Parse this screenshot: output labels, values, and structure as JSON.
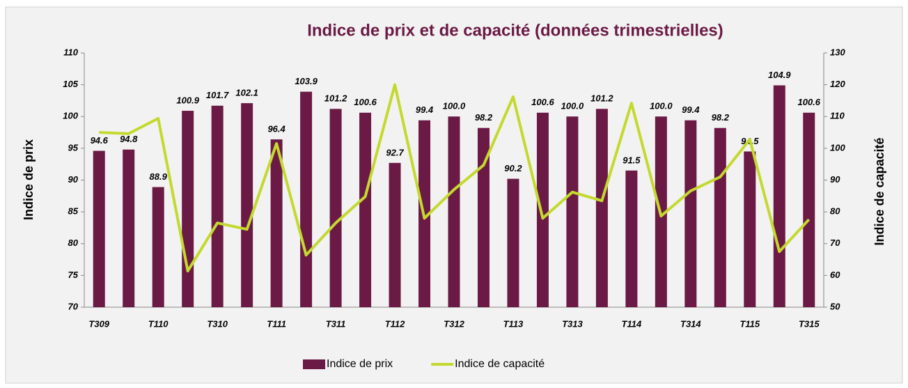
{
  "chart_data": {
    "type": "bar+line",
    "title": "Indice de prix et de capacité (données trimestrielles)",
    "categories": [
      "T309",
      null,
      "T110",
      null,
      "T310",
      null,
      "T111",
      null,
      "T311",
      null,
      "T112",
      null,
      "T312",
      null,
      "T113",
      null,
      "T313",
      null,
      "T114",
      null,
      "T314",
      null,
      "T115",
      null,
      "T315"
    ],
    "series": [
      {
        "name": "Indice de prix",
        "type": "bar",
        "color": "#6b1a45",
        "axis": "y",
        "values": [
          94.6,
          94.8,
          88.9,
          100.9,
          101.7,
          102.1,
          96.4,
          103.9,
          101.2,
          100.6,
          92.7,
          99.4,
          100.0,
          98.2,
          90.2,
          100.6,
          100.0,
          101.2,
          91.5,
          100.0,
          99.4,
          98.2,
          94.5,
          104.9,
          100.6
        ],
        "value_labels": [
          "94.6",
          "94.8",
          "88.9",
          "100.9",
          "101.7",
          "102.1",
          "96.4",
          "103.9",
          "101.2",
          "100.6",
          "92.7",
          "99.4",
          "100.0",
          "98.2",
          "90.2",
          "100.6",
          "100.0",
          "101.2",
          "91.5",
          "100.0",
          "99.4",
          "98.2",
          "94.5",
          "104.9",
          "100.6"
        ]
      },
      {
        "name": "Indice de capacité",
        "type": "line",
        "color": "#c4d92e",
        "axis": "y2",
        "values": [
          105,
          104.6,
          109.4,
          61.4,
          76.5,
          74.5,
          101.5,
          66.4,
          76.5,
          84.8,
          120,
          78,
          87,
          94.7,
          116.2,
          78,
          86.2,
          83.5,
          114.2,
          78.7,
          86.6,
          91,
          102.8,
          67.5,
          77.6
        ]
      }
    ],
    "ylabel": "Indice de prix",
    "y2label": "Indice de capacité",
    "ylim": [
      70,
      110
    ],
    "yticks": [
      70,
      75,
      80,
      85,
      90,
      95,
      100,
      105,
      110
    ],
    "y2lim": [
      50,
      130
    ],
    "y2ticks": [
      50,
      60,
      70,
      80,
      90,
      100,
      110,
      120,
      130
    ],
    "legend": "bottom"
  }
}
